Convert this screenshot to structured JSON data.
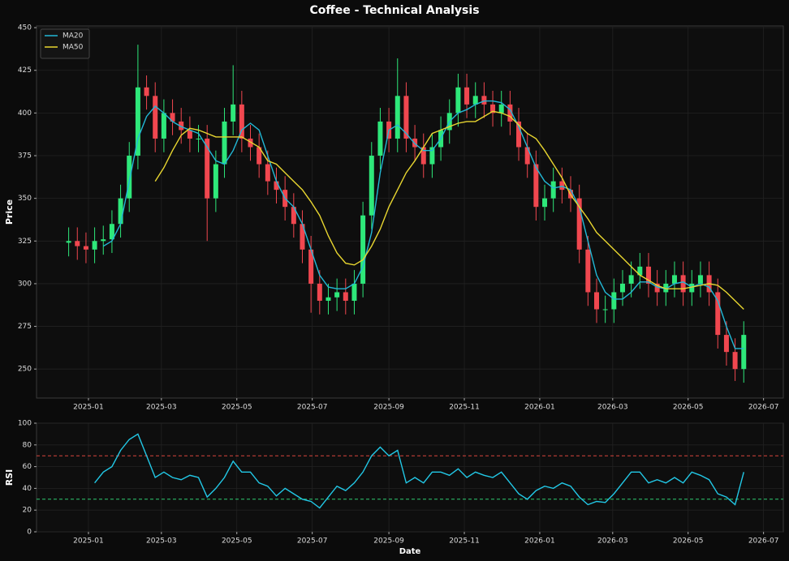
{
  "chart_data": [
    {
      "type": "candlestick",
      "title": "Coffee - Technical Analysis",
      "ylabel": "Price",
      "x": [
        "2024-12-16",
        "2024-12-23",
        "2024-12-30",
        "2025-01-06",
        "2025-01-13",
        "2025-01-20",
        "2025-01-27",
        "2025-02-03",
        "2025-02-10",
        "2025-02-17",
        "2025-02-24",
        "2025-03-03",
        "2025-03-10",
        "2025-03-17",
        "2025-03-24",
        "2025-03-31",
        "2025-04-07",
        "2025-04-14",
        "2025-04-21",
        "2025-04-28",
        "2025-05-05",
        "2025-05-12",
        "2025-05-19",
        "2025-05-26",
        "2025-06-02",
        "2025-06-09",
        "2025-06-16",
        "2025-06-23",
        "2025-06-30",
        "2025-07-07",
        "2025-07-14",
        "2025-07-21",
        "2025-07-28",
        "2025-08-04",
        "2025-08-11",
        "2025-08-18",
        "2025-08-25",
        "2025-09-01",
        "2025-09-08",
        "2025-09-15",
        "2025-09-22",
        "2025-09-29",
        "2025-10-06",
        "2025-10-13",
        "2025-10-20",
        "2025-10-27",
        "2025-11-03",
        "2025-11-10",
        "2025-11-17",
        "2025-11-24",
        "2025-12-01",
        "2025-12-08",
        "2025-12-15",
        "2025-12-22",
        "2025-12-29",
        "2026-01-05",
        "2026-01-12",
        "2026-01-19",
        "2026-01-26",
        "2026-02-02",
        "2026-02-09",
        "2026-02-16",
        "2026-02-23",
        "2026-03-02",
        "2026-03-09",
        "2026-03-16",
        "2026-03-23",
        "2026-03-30",
        "2026-04-06",
        "2026-04-13",
        "2026-04-20",
        "2026-04-27",
        "2026-05-04",
        "2026-05-11",
        "2026-05-18",
        "2026-05-25",
        "2026-06-01",
        "2026-06-08",
        "2026-06-15"
      ],
      "candles": {
        "open": [
          324,
          325,
          322,
          320,
          325,
          326,
          335,
          350,
          375,
          415,
          410,
          385,
          400,
          395,
          390,
          385,
          385,
          350,
          370,
          395,
          405,
          385,
          380,
          370,
          360,
          355,
          345,
          335,
          320,
          300,
          290,
          292,
          295,
          290,
          300,
          340,
          375,
          395,
          385,
          410,
          385,
          380,
          370,
          380,
          390,
          400,
          415,
          405,
          410,
          405,
          400,
          405,
          395,
          380,
          370,
          345,
          350,
          360,
          355,
          350,
          320,
          295,
          285,
          285,
          295,
          300,
          305,
          310,
          300,
          295,
          300,
          305,
          295,
          300,
          305,
          295,
          270,
          260,
          250
        ],
        "high": [
          333,
          333,
          330,
          333,
          334,
          343,
          358,
          383,
          440,
          422,
          418,
          408,
          408,
          403,
          398,
          393,
          393,
          378,
          403,
          428,
          413,
          393,
          388,
          378,
          368,
          363,
          353,
          343,
          328,
          308,
          300,
          303,
          303,
          308,
          348,
          383,
          403,
          403,
          432,
          418,
          393,
          388,
          388,
          398,
          408,
          423,
          423,
          418,
          418,
          413,
          413,
          413,
          403,
          388,
          378,
          358,
          368,
          368,
          363,
          358,
          328,
          303,
          293,
          303,
          308,
          313,
          318,
          318,
          308,
          308,
          313,
          313,
          308,
          313,
          313,
          303,
          278,
          268,
          278
        ],
        "low": [
          316,
          314,
          312,
          312,
          317,
          318,
          327,
          342,
          367,
          402,
          377,
          377,
          387,
          382,
          377,
          377,
          325,
          342,
          362,
          387,
          377,
          372,
          362,
          352,
          347,
          337,
          327,
          312,
          283,
          282,
          282,
          284,
          282,
          282,
          292,
          332,
          367,
          377,
          377,
          377,
          372,
          362,
          362,
          372,
          382,
          392,
          397,
          397,
          397,
          392,
          392,
          387,
          372,
          362,
          337,
          337,
          342,
          347,
          342,
          312,
          287,
          277,
          277,
          277,
          287,
          292,
          297,
          292,
          287,
          287,
          292,
          287,
          287,
          292,
          287,
          262,
          252,
          243,
          242
        ],
        "close": [
          325,
          322,
          320,
          325,
          326,
          335,
          350,
          375,
          415,
          410,
          385,
          400,
          395,
          390,
          385,
          385,
          350,
          370,
          395,
          405,
          385,
          380,
          370,
          360,
          355,
          345,
          335,
          320,
          300,
          290,
          292,
          295,
          290,
          300,
          340,
          375,
          395,
          385,
          410,
          385,
          380,
          370,
          380,
          390,
          400,
          415,
          405,
          410,
          405,
          400,
          405,
          395,
          380,
          370,
          345,
          350,
          360,
          355,
          350,
          320,
          295,
          285,
          285,
          295,
          300,
          305,
          310,
          300,
          295,
          300,
          305,
          295,
          300,
          305,
          295,
          270,
          260,
          250,
          270
        ]
      },
      "up_color": "#2ee87a",
      "down_color": "#f0474f",
      "series": [
        {
          "name": "MA20",
          "color": "#22b8d6",
          "values": [
            null,
            null,
            null,
            null,
            322,
            325,
            335,
            360,
            385,
            398,
            404,
            400,
            395,
            392,
            390,
            388,
            380,
            372,
            370,
            378,
            390,
            394,
            390,
            375,
            360,
            350,
            345,
            335,
            320,
            305,
            298,
            297,
            297,
            300,
            310,
            330,
            365,
            390,
            393,
            388,
            382,
            378,
            378,
            385,
            395,
            400,
            402,
            405,
            407,
            407,
            406,
            402,
            392,
            380,
            368,
            360,
            356,
            357,
            355,
            345,
            325,
            305,
            295,
            291,
            291,
            295,
            301,
            301,
            298,
            297,
            300,
            301,
            298,
            300,
            298,
            290,
            275,
            262,
            262
          ]
        },
        {
          "name": "MA50",
          "color": "#e8d630",
          "values": [
            null,
            null,
            null,
            null,
            null,
            null,
            null,
            null,
            null,
            null,
            360,
            368,
            378,
            387,
            391,
            390,
            388,
            386,
            386,
            386,
            386,
            383,
            380,
            372,
            370,
            365,
            360,
            355,
            348,
            340,
            328,
            318,
            312,
            311,
            314,
            322,
            332,
            345,
            355,
            365,
            372,
            380,
            388,
            390,
            392,
            394,
            395,
            395,
            398,
            401,
            400,
            398,
            393,
            388,
            385,
            378,
            370,
            362,
            352,
            345,
            338,
            330,
            325,
            320,
            315,
            310,
            305,
            302,
            299,
            297,
            297,
            297,
            298,
            299,
            300,
            299,
            295,
            290,
            285
          ]
        }
      ],
      "xlim": [
        "2024-11-20",
        "2026-07-17"
      ],
      "xticks": [
        "2025-01",
        "2025-03",
        "2025-05",
        "2025-07",
        "2025-09",
        "2025-11",
        "2026-01",
        "2026-03",
        "2026-05",
        "2026-07"
      ],
      "ylim": [
        233,
        451
      ],
      "yticks": [
        250,
        275,
        300,
        325,
        350,
        375,
        400,
        425,
        450
      ],
      "grid": true,
      "legend": "upper left"
    },
    {
      "type": "line",
      "ylabel": "RSI",
      "xlabel": "Date",
      "color": "#22c8e6",
      "x": [
        "2024-12-16",
        "2024-12-23",
        "2024-12-30",
        "2025-01-06",
        "2025-01-13",
        "2025-01-20",
        "2025-01-27",
        "2025-02-03",
        "2025-02-10",
        "2025-02-17",
        "2025-02-24",
        "2025-03-03",
        "2025-03-10",
        "2025-03-17",
        "2025-03-24",
        "2025-03-31",
        "2025-04-07",
        "2025-04-14",
        "2025-04-21",
        "2025-04-28",
        "2025-05-05",
        "2025-05-12",
        "2025-05-19",
        "2025-05-26",
        "2025-06-02",
        "2025-06-09",
        "2025-06-16",
        "2025-06-23",
        "2025-06-30",
        "2025-07-07",
        "2025-07-14",
        "2025-07-21",
        "2025-07-28",
        "2025-08-04",
        "2025-08-11",
        "2025-08-18",
        "2025-08-25",
        "2025-09-01",
        "2025-09-08",
        "2025-09-15",
        "2025-09-22",
        "2025-09-29",
        "2025-10-06",
        "2025-10-13",
        "2025-10-20",
        "2025-10-27",
        "2025-11-03",
        "2025-11-10",
        "2025-11-17",
        "2025-11-24",
        "2025-12-01",
        "2025-12-08",
        "2025-12-15",
        "2025-12-22",
        "2025-12-29",
        "2026-01-05",
        "2026-01-12",
        "2026-01-19",
        "2026-01-26",
        "2026-02-02",
        "2026-02-09",
        "2026-02-16",
        "2026-02-23",
        "2026-03-02",
        "2026-03-09",
        "2026-03-16",
        "2026-03-23",
        "2026-03-30",
        "2026-04-06",
        "2026-04-13",
        "2026-04-20",
        "2026-04-27",
        "2026-05-04",
        "2026-05-11",
        "2026-05-18",
        "2026-05-25",
        "2026-06-01",
        "2026-06-08",
        "2026-06-15"
      ],
      "values": [
        null,
        null,
        null,
        45,
        55,
        60,
        75,
        85,
        90,
        70,
        50,
        55,
        50,
        48,
        52,
        50,
        32,
        40,
        50,
        65,
        55,
        55,
        45,
        42,
        33,
        40,
        35,
        30,
        28,
        22,
        32,
        42,
        38,
        45,
        55,
        70,
        78,
        70,
        75,
        45,
        50,
        45,
        55,
        55,
        52,
        58,
        50,
        55,
        52,
        50,
        55,
        45,
        35,
        30,
        38,
        42,
        40,
        45,
        42,
        32,
        25,
        28,
        27,
        35,
        45,
        55,
        55,
        45,
        48,
        45,
        50,
        45,
        55,
        52,
        48,
        35,
        32,
        25,
        55
      ],
      "hlines": [
        {
          "value": 70,
          "color": "#d9443c"
        },
        {
          "value": 30,
          "color": "#2ecc71"
        }
      ],
      "xlim": [
        "2024-11-20",
        "2026-07-17"
      ],
      "xticks": [
        "2025-01",
        "2025-03",
        "2025-05",
        "2025-07",
        "2025-09",
        "2025-11",
        "2026-01",
        "2026-03",
        "2026-05",
        "2026-07"
      ],
      "ylim": [
        0,
        100
      ],
      "yticks": [
        0,
        20,
        40,
        60,
        80,
        100
      ],
      "grid": true
    }
  ]
}
